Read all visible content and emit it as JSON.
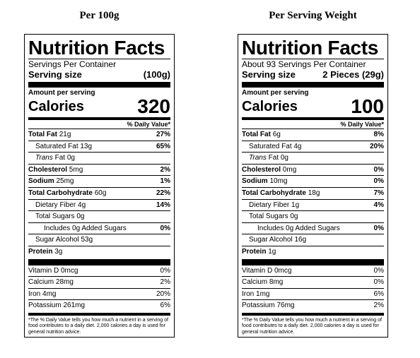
{
  "panels": [
    {
      "heading": "Per 100g",
      "title": "Nutrition Facts",
      "servings": "Servings Per Container",
      "serving_size_label": "Serving size",
      "serving_size_value": "(100g)",
      "amount_per_serving": "Amount per serving",
      "calories_label": "Calories",
      "calories": "320",
      "dv_header": "% Daily Value*",
      "rows": {
        "fat": {
          "label": "Total Fat",
          "amount": "21g",
          "dv": "27%"
        },
        "satfat": {
          "label": "Saturated Fat 13g",
          "dv": "65%"
        },
        "transfat": {
          "label": "Trans",
          "amount": "Fat 0g"
        },
        "chol": {
          "label": "Cholesterol",
          "amount": "5mg",
          "dv": "2%"
        },
        "sodium": {
          "label": "Sodium",
          "amount": "25mg",
          "dv": "1%"
        },
        "carb": {
          "label": "Total Carbohydrate",
          "amount": "60g",
          "dv": "22%"
        },
        "fiber": {
          "label": "Dietary Fiber 4g",
          "dv": "14%"
        },
        "sugars": {
          "label": "Total Sugars 0g"
        },
        "added": {
          "label": "Includes 0g Added Sugars",
          "dv": "0%"
        },
        "alcohol": {
          "label": "Sugar Alcohol 53g"
        },
        "protein": {
          "label": "Protein",
          "amount": "3g"
        },
        "vitd": {
          "label": "Vitamin D 0mcg",
          "dv": "0%"
        },
        "calcium": {
          "label": "Calcium 28mg",
          "dv": "2%"
        },
        "iron": {
          "label": "Iron 4mg",
          "dv": "20%"
        },
        "potassium": {
          "label": "Potassium 261mg",
          "dv": "6%"
        }
      },
      "footnote": "*The % Daily Value tells you how much a nutrient in a serving of food contributes to a daily diet. 2,000 calories a day is used for general nutrition advice."
    },
    {
      "heading": "Per Serving Weight",
      "title": "Nutrition Facts",
      "servings": "About 93 Servings Per Container",
      "serving_size_label": "Serving size",
      "serving_size_value": "2 Pieces (29g)",
      "amount_per_serving": "Amount per serving",
      "calories_label": "Calories",
      "calories": "100",
      "dv_header": "% Daily Value*",
      "rows": {
        "fat": {
          "label": "Total Fat",
          "amount": "6g",
          "dv": "8%"
        },
        "satfat": {
          "label": "Saturated Fat 4g",
          "dv": "20%"
        },
        "transfat": {
          "label": "Trans",
          "amount": "Fat 0g"
        },
        "chol": {
          "label": "Cholesterol",
          "amount": "0mg",
          "dv": "0%"
        },
        "sodium": {
          "label": "Sodium",
          "amount": "10mg",
          "dv": "0%"
        },
        "carb": {
          "label": "Total Carbohydrate",
          "amount": "18g",
          "dv": "7%"
        },
        "fiber": {
          "label": "Dietary Fiber 1g",
          "dv": "4%"
        },
        "sugars": {
          "label": "Total Sugars 0g"
        },
        "added": {
          "label": "Includes 0g Added Sugars",
          "dv": "0%"
        },
        "alcohol": {
          "label": "Sugar Alcohol 16g"
        },
        "protein": {
          "label": "Protein",
          "amount": "1g"
        },
        "vitd": {
          "label": "Vitamin D 0mcg",
          "dv": "0%"
        },
        "calcium": {
          "label": "Calcium 8mg",
          "dv": "0%"
        },
        "iron": {
          "label": "Iron 1mg",
          "dv": "6%"
        },
        "potassium": {
          "label": "Potassium 76mg",
          "dv": "2%"
        }
      },
      "footnote": "*The % Daily Value tells you how much a nutrient in a serving of food contributes to a daily diet. 2,000 calories a day is used for general nutrition advice."
    }
  ]
}
